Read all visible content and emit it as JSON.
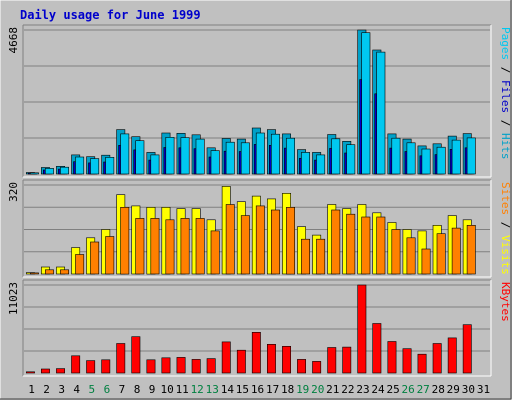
{
  "chart_data": {
    "type": "bar",
    "title": "Daily usage for June 1999",
    "days": [
      "1",
      "2",
      "3",
      "4",
      "5",
      "6",
      "7",
      "8",
      "9",
      "10",
      "11",
      "12",
      "13",
      "14",
      "15",
      "16",
      "17",
      "18",
      "19",
      "20",
      "21",
      "22",
      "23",
      "24",
      "25",
      "26",
      "27",
      "28",
      "29",
      "30",
      "31"
    ],
    "weekend_days": [
      5,
      6,
      12,
      13,
      19,
      20,
      26,
      27
    ],
    "colors": {
      "background": "#c0c0c0",
      "title": "#0000cc",
      "hits": "#00a0c8",
      "files": "#0000c8",
      "pages": "#00c8f0",
      "visits": "#ffff00",
      "sites": "#ff8000",
      "kbytes": "#ff0000",
      "weekend_label": "#008040",
      "grid": "#808080"
    },
    "panels": [
      {
        "id": "hits-files-pages",
        "max_label": "4668",
        "ymax": 4668,
        "side_labels": [
          {
            "text": "Pages",
            "color": "#00c8f0"
          },
          {
            "text": " / ",
            "color": "#000000"
          },
          {
            "text": "Files",
            "color": "#0000c8"
          },
          {
            "text": " / ",
            "color": "#000000"
          },
          {
            "text": "Hits",
            "color": "#00a0c8"
          }
        ],
        "series": [
          {
            "name": "Hits",
            "color": "#00a0c8",
            "values": [
              50,
              210,
              250,
              620,
              560,
              610,
              1440,
              1210,
              700,
              1330,
              1320,
              1270,
              850,
              1150,
              1130,
              1490,
              1440,
              1300,
              790,
              700,
              1280,
              1060,
              4668,
              4020,
              1300,
              1130,
              910,
              980,
              1230,
              1310,
              null
            ]
          },
          {
            "name": "Files",
            "color": "#0000c8",
            "values": [
              30,
              130,
              160,
              400,
              360,
              390,
              930,
              780,
              450,
              860,
              850,
              820,
              550,
              740,
              730,
              960,
              930,
              840,
              510,
              450,
              830,
              680,
              3060,
              2600,
              840,
              730,
              590,
              630,
              800,
              850,
              null
            ]
          },
          {
            "name": "Pages",
            "color": "#00c8f0",
            "values": [
              40,
              180,
              220,
              550,
              500,
              540,
              1300,
              1080,
              620,
              1190,
              1180,
              1130,
              760,
              1030,
              1010,
              1330,
              1290,
              1160,
              700,
              620,
              1140,
              950,
              4580,
              3950,
              1160,
              1010,
              810,
              870,
              1100,
              1170,
              null
            ]
          }
        ]
      },
      {
        "id": "visits-sites",
        "max_label": "320",
        "ymax": 320,
        "side_labels": [
          {
            "text": "Sites",
            "color": "#ff8000"
          },
          {
            "text": " / ",
            "color": "#000000"
          },
          {
            "text": "Visits",
            "color": "#ffff00"
          }
        ],
        "series": [
          {
            "name": "Visits",
            "color": "#ffff00",
            "values": [
              5,
              25,
              25,
              95,
              130,
              160,
              285,
              245,
              240,
              240,
              235,
              235,
              195,
              315,
              260,
              280,
              270,
              290,
              170,
              140,
              250,
              235,
              250,
              220,
              185,
              160,
              155,
              175,
              210,
              195,
              null
            ]
          },
          {
            "name": "Sites",
            "color": "#ff8000",
            "values": [
              4,
              15,
              15,
              70,
              115,
              135,
              240,
              200,
              200,
              195,
              200,
              200,
              155,
              250,
              210,
              245,
              230,
              240,
              125,
              125,
              230,
              215,
              205,
              205,
              160,
              130,
              90,
              145,
              165,
              175,
              null
            ]
          }
        ]
      },
      {
        "id": "kbytes",
        "max_label": "11023",
        "ymax": 11023,
        "side_labels": [
          {
            "text": "KBytes",
            "color": "#ff0000"
          }
        ],
        "series": [
          {
            "name": "KBytes",
            "color": "#ff0000",
            "values": [
              150,
              500,
              550,
              2150,
              1550,
              1650,
              3700,
              4550,
              1650,
              1900,
              1950,
              1700,
              1800,
              3900,
              2850,
              5100,
              3600,
              3350,
              1700,
              1450,
              3200,
              3250,
              11023,
              6200,
              3950,
              3050,
              2350,
              3700,
              4400,
              6050,
              null
            ]
          }
        ]
      }
    ]
  }
}
